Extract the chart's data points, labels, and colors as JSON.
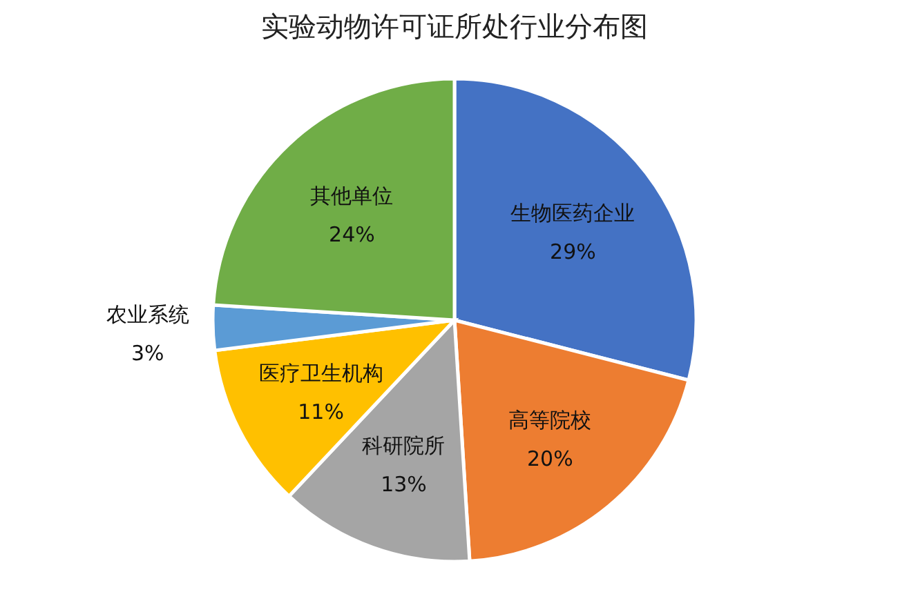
{
  "chart_data": {
    "type": "pie",
    "title": "实验动物许可证所处行业分布图",
    "categories": [
      "生物医药企业",
      "高等院校",
      "科研院所",
      "医疗卫生机构",
      "农业系统",
      "其他单位"
    ],
    "values": [
      29,
      20,
      13,
      11,
      3,
      24
    ],
    "value_labels": [
      "29%",
      "20%",
      "13%",
      "11%",
      "3%",
      "24%"
    ],
    "colors": [
      "#4472c4",
      "#ed7d31",
      "#a5a5a5",
      "#ffc000",
      "#5b9bd5",
      "#70ad47"
    ]
  }
}
